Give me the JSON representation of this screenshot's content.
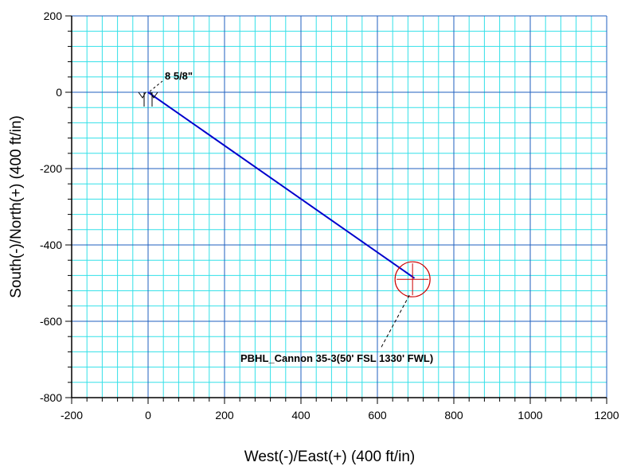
{
  "chart_data": {
    "type": "line",
    "title": "",
    "xlabel": "West(-)/East(+) (400 ft/in)",
    "ylabel": "South(-)/North(+) (400 ft/in)",
    "xlim": [
      -200,
      1200
    ],
    "ylim": [
      -800,
      200
    ],
    "major_step": 200,
    "minor_step": 40,
    "grid": true,
    "x_ticks": [
      -200,
      0,
      200,
      400,
      600,
      800,
      1000,
      1200
    ],
    "y_ticks": [
      200,
      0,
      -200,
      -400,
      -600,
      -800
    ],
    "series": [
      {
        "color": "#0000cc",
        "points": [
          {
            "x": 0,
            "y": 0
          },
          {
            "x": 697,
            "y": -487
          }
        ]
      }
    ],
    "annotations": {
      "casing": {
        "text": "8 5/8\"",
        "x": 0,
        "y": 0
      },
      "target": {
        "text": "PBHL_Cannon 35-3(50' FSL 1330' FWL)",
        "x": 692,
        "y": -490
      }
    },
    "colors": {
      "minor_grid": "#33e0e8",
      "major_grid": "#1f5fbf",
      "well_path": "#0000cc",
      "target": "#cc0000"
    }
  }
}
